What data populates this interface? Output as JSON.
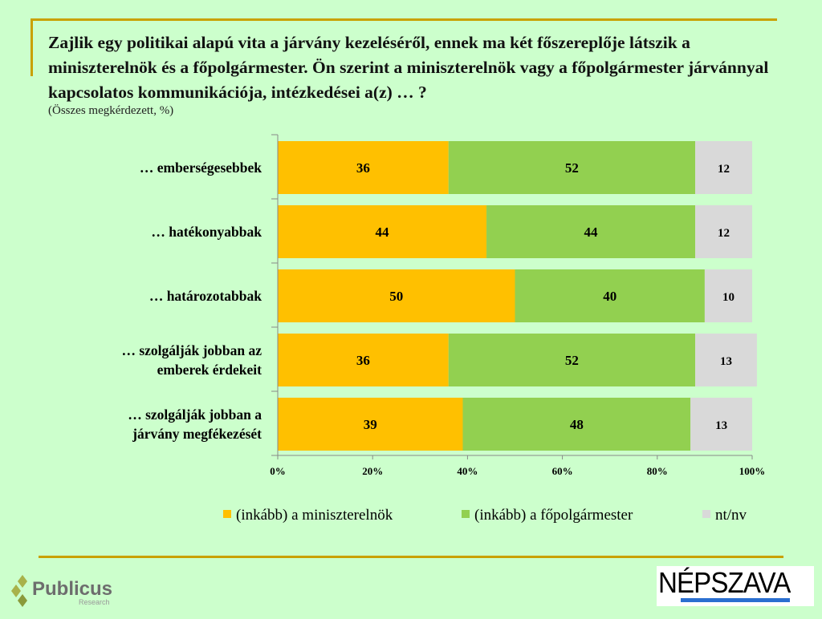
{
  "title": "Zajlik egy politikai alapú vita a járvány kezeléséről, ennek ma két főszereplője látszik a miniszterelnök és a főpolgármester. Ön szerint a miniszterelnök vagy a főpolgármester járvánnyal kapcsolatos kommunikációja, intézkedései a(z) … ?",
  "subtitle": "(Összes megkérdezett, %)",
  "logos": {
    "left": "Publicus Research",
    "right": "NÉPSZAVA"
  },
  "chart_data": {
    "type": "bar",
    "orientation": "horizontal",
    "stacked": true,
    "categories": [
      [
        "… emberségesebbek"
      ],
      [
        "… hatékonyabbak"
      ],
      [
        "… határozotabbak"
      ],
      [
        "… szolgálják jobban az",
        "emberek érdekeit"
      ],
      [
        "… szolgálják jobban a",
        "járvány megfékezését"
      ]
    ],
    "series": [
      {
        "name": "(inkább) a miniszterelnök",
        "color": "#ffc000",
        "values": [
          36,
          44,
          50,
          36,
          39
        ]
      },
      {
        "name": "(inkább) a főpolgármester",
        "color": "#92d050",
        "values": [
          52,
          44,
          40,
          52,
          48
        ]
      },
      {
        "name": "nt/nv",
        "color": "#d9d9d9",
        "values": [
          12,
          12,
          10,
          13,
          13
        ]
      }
    ],
    "xlim": [
      0,
      100
    ],
    "xticks": [
      "0%",
      "20%",
      "40%",
      "60%",
      "80%",
      "100%"
    ],
    "legend": "bottom"
  }
}
